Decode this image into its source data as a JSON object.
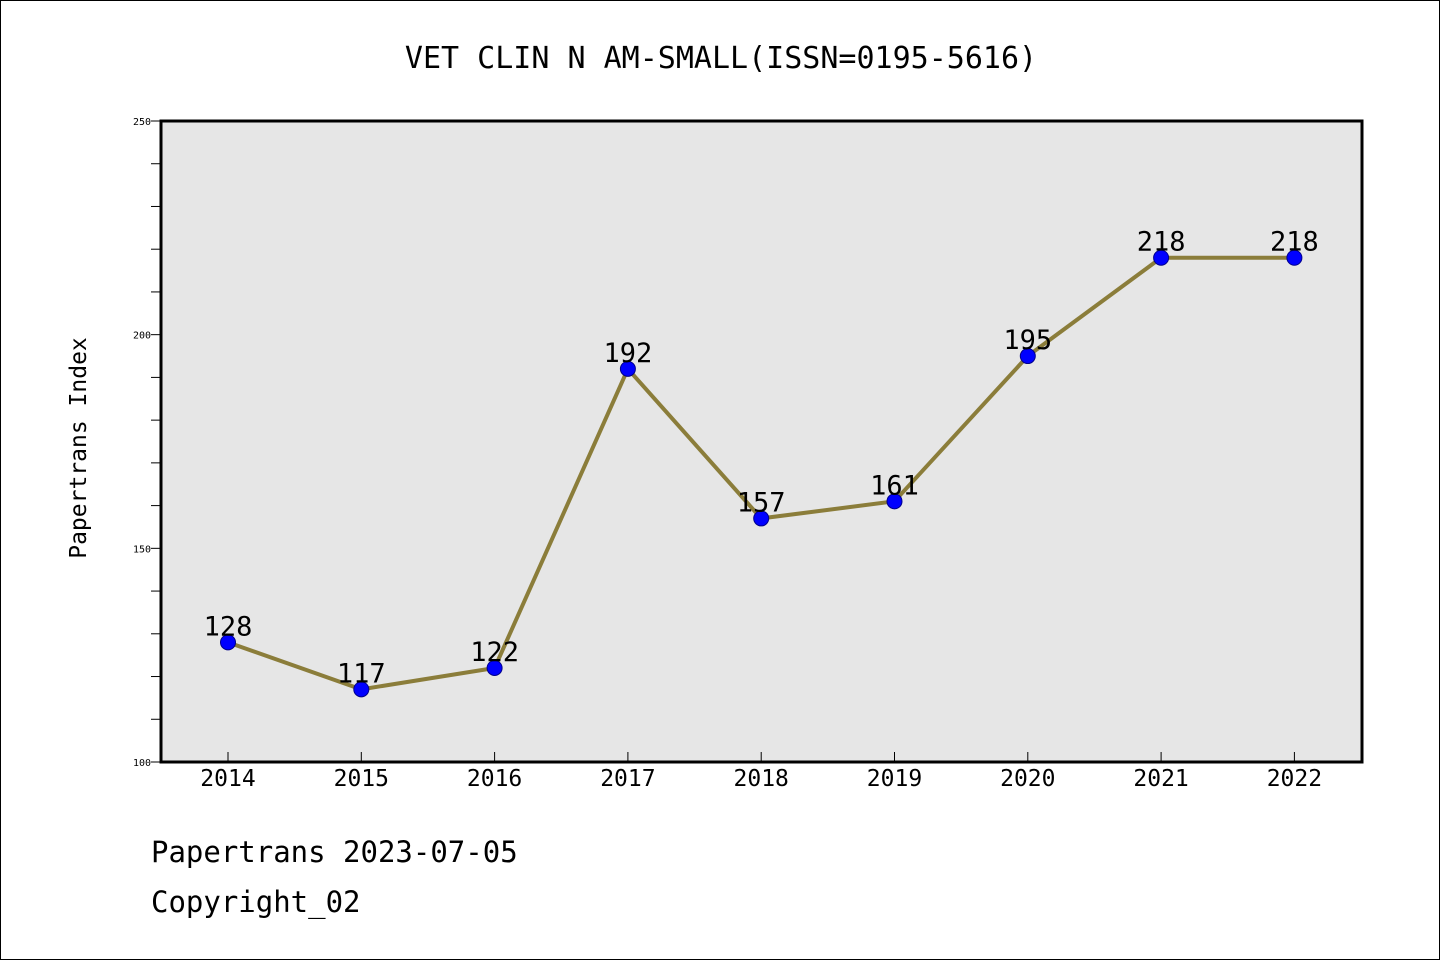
{
  "chart_data": {
    "type": "line",
    "title": "VET CLIN N AM-SMALL(ISSN=0195-5616)",
    "xlabel": "",
    "ylabel": "Papertrans Index",
    "categories": [
      "2014",
      "2015",
      "2016",
      "2017",
      "2018",
      "2019",
      "2020",
      "2021",
      "2022"
    ],
    "values": [
      128,
      117,
      122,
      192,
      157,
      161,
      195,
      218,
      218
    ],
    "ylim": [
      100,
      250
    ],
    "yticks": [
      "100",
      "150",
      "200",
      "250"
    ],
    "data_labels": [
      "128",
      "117",
      "122",
      "192",
      "157",
      "161",
      "195",
      "218",
      "218"
    ],
    "grid": false,
    "legend": "none",
    "colors": {
      "line": "#8B7D3A",
      "marker": "#0000FF",
      "marker_edge": "#00008B",
      "plot_background": "#E6E6E6"
    }
  },
  "footer": {
    "line1": "Papertrans 2023-07-05",
    "line2": "Copyright_02"
  }
}
